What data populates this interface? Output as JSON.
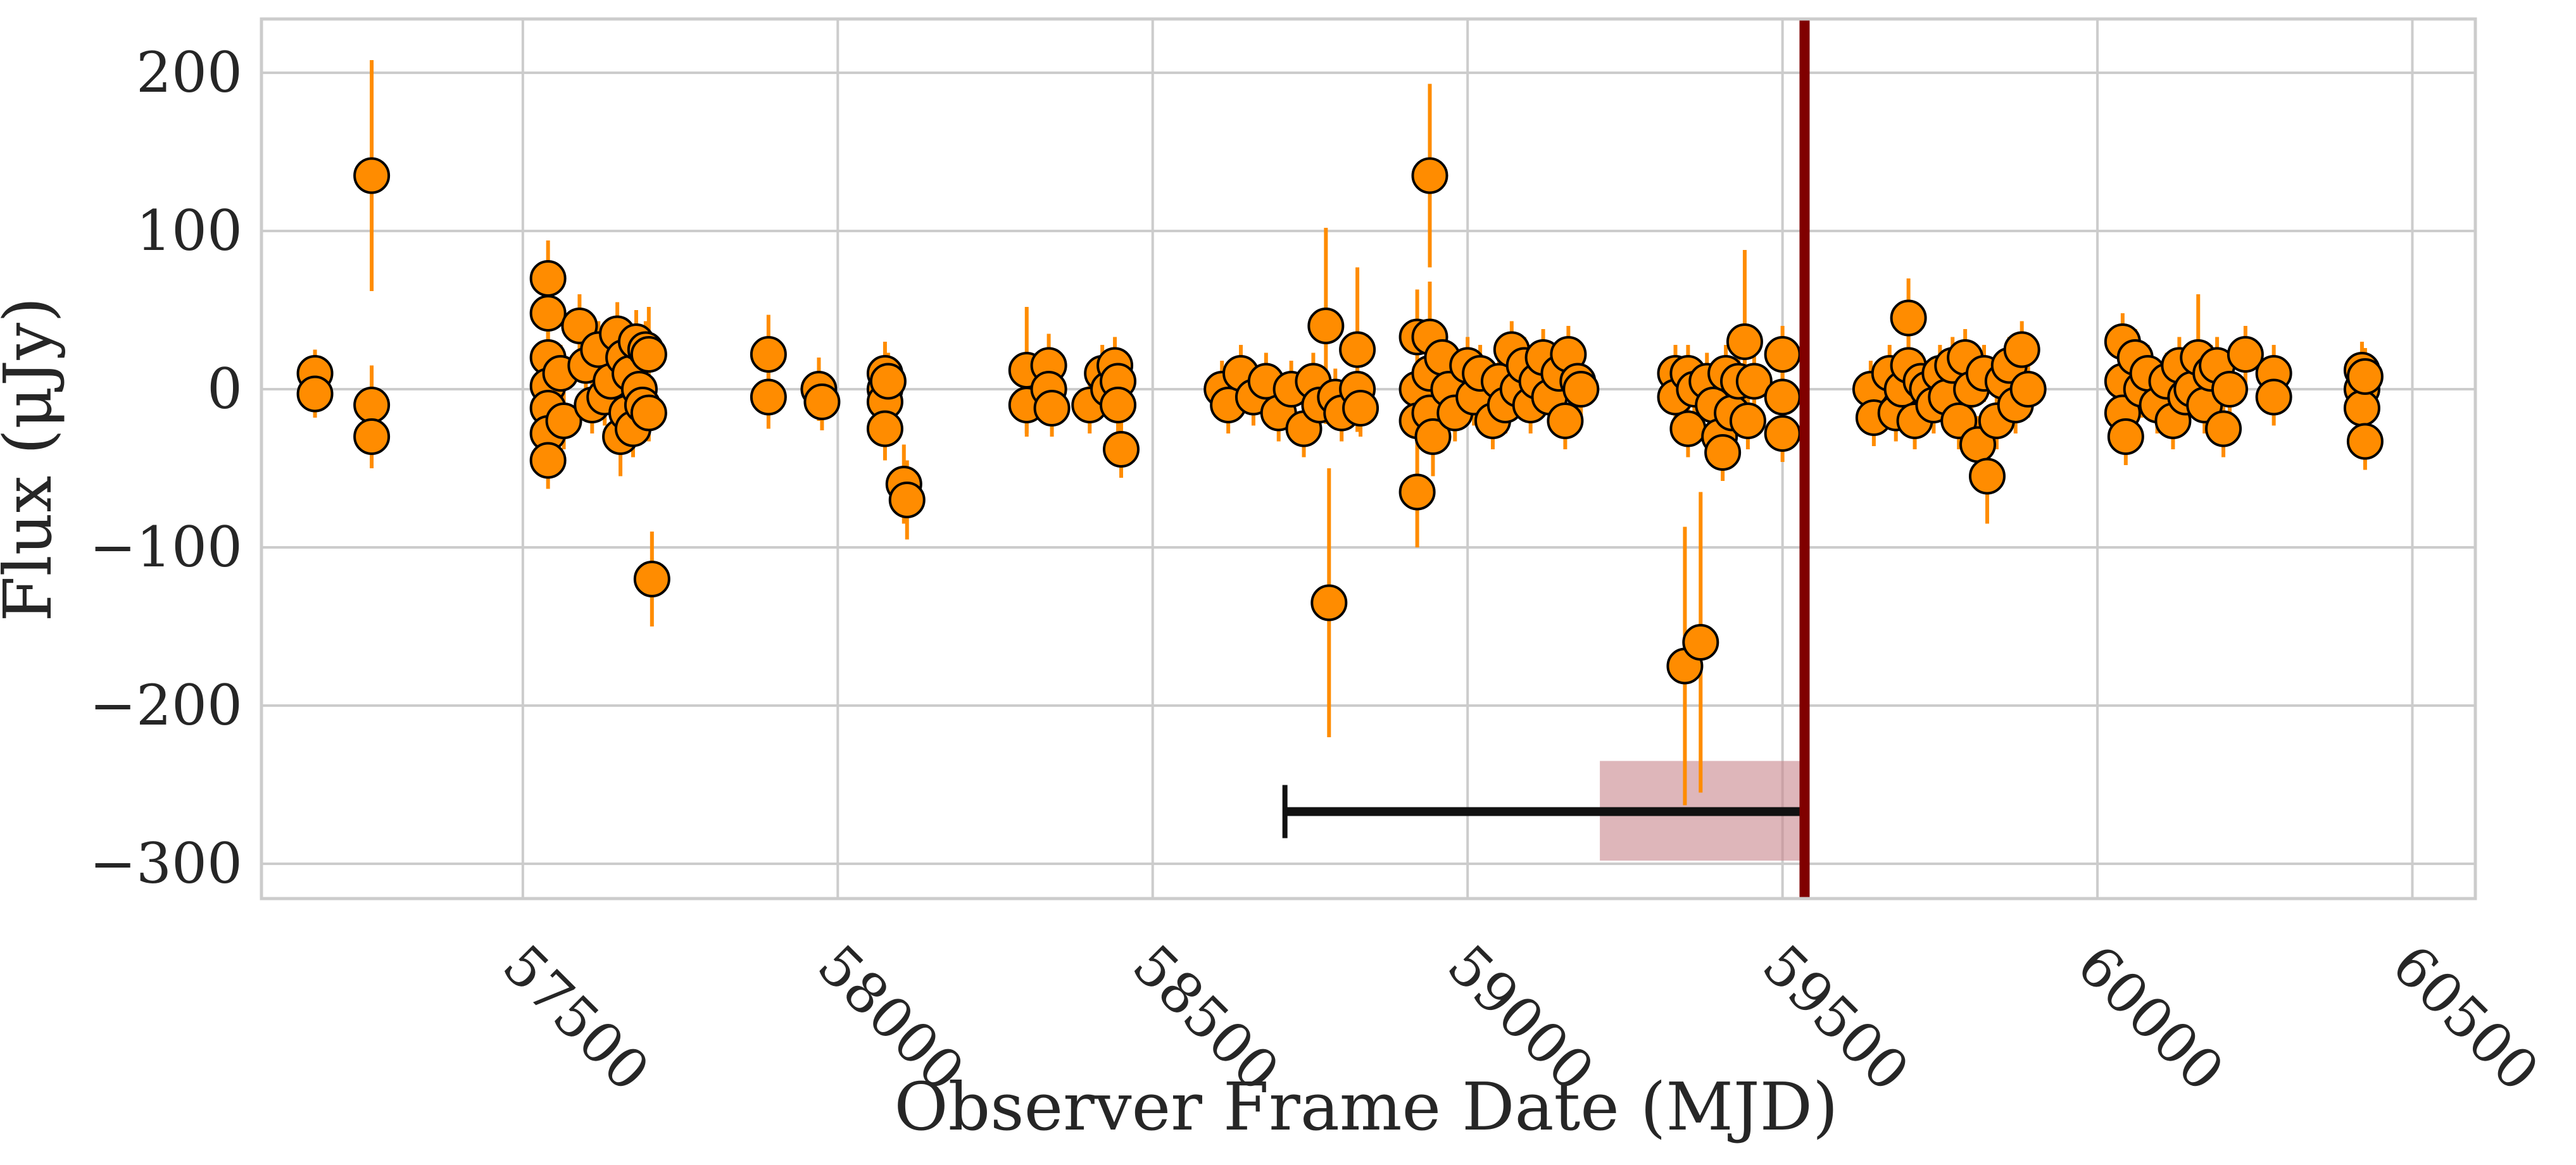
{
  "chart_data": {
    "type": "scatter",
    "title": "",
    "xlabel": "Observer Frame Date (MJD)",
    "ylabel": "Flux (μJy)",
    "xlim": [
      57085,
      60600
    ],
    "ylim": [
      -322,
      234
    ],
    "x_ticks": [
      57500,
      58000,
      58500,
      59000,
      59500,
      60000,
      60500
    ],
    "y_ticks": [
      200,
      100,
      0,
      -100,
      -200,
      -300
    ],
    "x_tick_labels": [
      "57500",
      "58000",
      "58500",
      "59000",
      "59500",
      "60000",
      "60500"
    ],
    "y_tick_labels": [
      "200",
      "100",
      "0",
      "−100",
      "−200",
      "−300"
    ],
    "grid": true,
    "colors": {
      "marker_fill": "#ff8c00",
      "marker_edge": "#000000",
      "errorbar": "#ff8c00",
      "vline": "#800000",
      "span_fill": "#c8868c",
      "interval_bar": "#111111",
      "grid": "#cccccc",
      "axes_edge": "#cccccc"
    },
    "vertical_line": {
      "x": 59535
    },
    "shaded_span": {
      "x_range": [
        59210,
        59535
      ],
      "y_range": [
        -298,
        -235
      ]
    },
    "interval_bar": {
      "x_range": [
        58710,
        59535
      ],
      "y": -267
    },
    "series": [
      {
        "marker": "circle",
        "points": [
          {
            "x": 57170,
            "y": 10,
            "err": 15
          },
          {
            "x": 57170,
            "y": -3,
            "err": 15
          },
          {
            "x": 57260,
            "y": 135,
            "err": 73
          },
          {
            "x": 57260,
            "y": -10,
            "err": 25
          },
          {
            "x": 57260,
            "y": -30,
            "err": 20
          },
          {
            "x": 57540,
            "y": 70,
            "err": 24
          },
          {
            "x": 57540,
            "y": 48,
            "err": 22
          },
          {
            "x": 57540,
            "y": 20,
            "err": 20
          },
          {
            "x": 57540,
            "y": 2,
            "err": 18
          },
          {
            "x": 57540,
            "y": -12,
            "err": 18
          },
          {
            "x": 57540,
            "y": -28,
            "err": 18
          },
          {
            "x": 57540,
            "y": -45,
            "err": 18
          },
          {
            "x": 57560,
            "y": 10,
            "err": 18
          },
          {
            "x": 57565,
            "y": -20,
            "err": 18
          },
          {
            "x": 57590,
            "y": 40,
            "err": 20
          },
          {
            "x": 57600,
            "y": 15,
            "err": 18
          },
          {
            "x": 57610,
            "y": -10,
            "err": 18
          },
          {
            "x": 57620,
            "y": 25,
            "err": 18
          },
          {
            "x": 57630,
            "y": -5,
            "err": 18
          },
          {
            "x": 57640,
            "y": 5,
            "err": 18
          },
          {
            "x": 57650,
            "y": 35,
            "err": 20
          },
          {
            "x": 57655,
            "y": -30,
            "err": 25
          },
          {
            "x": 57660,
            "y": 20,
            "err": 18
          },
          {
            "x": 57665,
            "y": -15,
            "err": 18
          },
          {
            "x": 57670,
            "y": 10,
            "err": 18
          },
          {
            "x": 57675,
            "y": -25,
            "err": 18
          },
          {
            "x": 57680,
            "y": 30,
            "err": 20
          },
          {
            "x": 57685,
            "y": 0,
            "err": 18
          },
          {
            "x": 57690,
            "y": -10,
            "err": 18
          },
          {
            "x": 57695,
            "y": 25,
            "err": 18
          },
          {
            "x": 57700,
            "y": 22,
            "err": 30
          },
          {
            "x": 57700,
            "y": -15,
            "err": 18
          },
          {
            "x": 57705,
            "y": -120,
            "err": 30
          },
          {
            "x": 57890,
            "y": 22,
            "err": 25
          },
          {
            "x": 57890,
            "y": -5,
            "err": 20
          },
          {
            "x": 57970,
            "y": 0,
            "err": 20
          },
          {
            "x": 57975,
            "y": -8,
            "err": 18
          },
          {
            "x": 58075,
            "y": 10,
            "err": 20
          },
          {
            "x": 58075,
            "y": 0,
            "err": 18
          },
          {
            "x": 58075,
            "y": -8,
            "err": 18
          },
          {
            "x": 58075,
            "y": -25,
            "err": 20
          },
          {
            "x": 58080,
            "y": 5,
            "err": 18
          },
          {
            "x": 58105,
            "y": -60,
            "err": 25
          },
          {
            "x": 58110,
            "y": -70,
            "err": 25
          },
          {
            "x": 58300,
            "y": 12,
            "err": 40
          },
          {
            "x": 58300,
            "y": -10,
            "err": 20
          },
          {
            "x": 58335,
            "y": 15,
            "err": 20
          },
          {
            "x": 58335,
            "y": 0,
            "err": 18
          },
          {
            "x": 58340,
            "y": -12,
            "err": 18
          },
          {
            "x": 58400,
            "y": -10,
            "err": 18
          },
          {
            "x": 58420,
            "y": 10,
            "err": 18
          },
          {
            "x": 58430,
            "y": 0,
            "err": 18
          },
          {
            "x": 58440,
            "y": 15,
            "err": 18
          },
          {
            "x": 58445,
            "y": 5,
            "err": 18
          },
          {
            "x": 58445,
            "y": -10,
            "err": 18
          },
          {
            "x": 58450,
            "y": -38,
            "err": 18
          },
          {
            "x": 58610,
            "y": 0,
            "err": 18
          },
          {
            "x": 58620,
            "y": -10,
            "err": 18
          },
          {
            "x": 58640,
            "y": 10,
            "err": 18
          },
          {
            "x": 58660,
            "y": -5,
            "err": 18
          },
          {
            "x": 58680,
            "y": 5,
            "err": 18
          },
          {
            "x": 58700,
            "y": -15,
            "err": 18
          },
          {
            "x": 58720,
            "y": 0,
            "err": 18
          },
          {
            "x": 58740,
            "y": -25,
            "err": 18
          },
          {
            "x": 58755,
            "y": 5,
            "err": 18
          },
          {
            "x": 58765,
            "y": -10,
            "err": 18
          },
          {
            "x": 58775,
            "y": 40,
            "err": 62
          },
          {
            "x": 58780,
            "y": -135,
            "err": 85
          },
          {
            "x": 58790,
            "y": -5,
            "err": 18
          },
          {
            "x": 58800,
            "y": -15,
            "err": 18
          },
          {
            "x": 58825,
            "y": 25,
            "err": 52
          },
          {
            "x": 58825,
            "y": 0,
            "err": 18
          },
          {
            "x": 58830,
            "y": -12,
            "err": 18
          },
          {
            "x": 58920,
            "y": 33,
            "err": 30
          },
          {
            "x": 58920,
            "y": 0,
            "err": 18
          },
          {
            "x": 58920,
            "y": -20,
            "err": 18
          },
          {
            "x": 58920,
            "y": -65,
            "err": 35
          },
          {
            "x": 58940,
            "y": 135,
            "err": 58
          },
          {
            "x": 58940,
            "y": 33,
            "err": 35
          },
          {
            "x": 58940,
            "y": 10,
            "err": 18
          },
          {
            "x": 58940,
            "y": -15,
            "err": 18
          },
          {
            "x": 58945,
            "y": -30,
            "err": 25
          },
          {
            "x": 58960,
            "y": 20,
            "err": 18
          },
          {
            "x": 58970,
            "y": 0,
            "err": 18
          },
          {
            "x": 58980,
            "y": -15,
            "err": 18
          },
          {
            "x": 59000,
            "y": 15,
            "err": 18
          },
          {
            "x": 59010,
            "y": -5,
            "err": 18
          },
          {
            "x": 59020,
            "y": 10,
            "err": 18
          },
          {
            "x": 59040,
            "y": -20,
            "err": 18
          },
          {
            "x": 59050,
            "y": 5,
            "err": 18
          },
          {
            "x": 59060,
            "y": -10,
            "err": 18
          },
          {
            "x": 59070,
            "y": 25,
            "err": 18
          },
          {
            "x": 59080,
            "y": 0,
            "err": 18
          },
          {
            "x": 59090,
            "y": 15,
            "err": 18
          },
          {
            "x": 59100,
            "y": -10,
            "err": 18
          },
          {
            "x": 59110,
            "y": 5,
            "err": 18
          },
          {
            "x": 59120,
            "y": 20,
            "err": 18
          },
          {
            "x": 59130,
            "y": -5,
            "err": 18
          },
          {
            "x": 59145,
            "y": 10,
            "err": 18
          },
          {
            "x": 59155,
            "y": -20,
            "err": 18
          },
          {
            "x": 59160,
            "y": 22,
            "err": 18
          },
          {
            "x": 59175,
            "y": 5,
            "err": 18
          },
          {
            "x": 59180,
            "y": 0,
            "err": 18
          },
          {
            "x": 59330,
            "y": 10,
            "err": 18
          },
          {
            "x": 59330,
            "y": -5,
            "err": 18
          },
          {
            "x": 59345,
            "y": -175,
            "err": 88
          },
          {
            "x": 59350,
            "y": 10,
            "err": 18
          },
          {
            "x": 59350,
            "y": -25,
            "err": 18
          },
          {
            "x": 59360,
            "y": 0,
            "err": 18
          },
          {
            "x": 59370,
            "y": -160,
            "err": 95
          },
          {
            "x": 59380,
            "y": 5,
            "err": 18
          },
          {
            "x": 59390,
            "y": -10,
            "err": 18
          },
          {
            "x": 59400,
            "y": -30,
            "err": 18
          },
          {
            "x": 59405,
            "y": -40,
            "err": 18
          },
          {
            "x": 59410,
            "y": 10,
            "err": 18
          },
          {
            "x": 59420,
            "y": -15,
            "err": 18
          },
          {
            "x": 59430,
            "y": 5,
            "err": 18
          },
          {
            "x": 59440,
            "y": 30,
            "err": 58
          },
          {
            "x": 59445,
            "y": -20,
            "err": 18
          },
          {
            "x": 59455,
            "y": 5,
            "err": 18
          },
          {
            "x": 59500,
            "y": 22,
            "err": 18
          },
          {
            "x": 59500,
            "y": -5,
            "err": 18
          },
          {
            "x": 59500,
            "y": -28,
            "err": 18
          },
          {
            "x": 59640,
            "y": 0,
            "err": 18
          },
          {
            "x": 59645,
            "y": -18,
            "err": 18
          },
          {
            "x": 59670,
            "y": 10,
            "err": 18
          },
          {
            "x": 59680,
            "y": -15,
            "err": 18
          },
          {
            "x": 59690,
            "y": 0,
            "err": 18
          },
          {
            "x": 59700,
            "y": 45,
            "err": 25
          },
          {
            "x": 59700,
            "y": 15,
            "err": 18
          },
          {
            "x": 59710,
            "y": -20,
            "err": 18
          },
          {
            "x": 59720,
            "y": 5,
            "err": 18
          },
          {
            "x": 59730,
            "y": 0,
            "err": 18
          },
          {
            "x": 59740,
            "y": -10,
            "err": 18
          },
          {
            "x": 59750,
            "y": 10,
            "err": 18
          },
          {
            "x": 59760,
            "y": -5,
            "err": 18
          },
          {
            "x": 59770,
            "y": 15,
            "err": 18
          },
          {
            "x": 59780,
            "y": -20,
            "err": 18
          },
          {
            "x": 59790,
            "y": 20,
            "err": 18
          },
          {
            "x": 59800,
            "y": 0,
            "err": 18
          },
          {
            "x": 59810,
            "y": -35,
            "err": 18
          },
          {
            "x": 59820,
            "y": 10,
            "err": 18
          },
          {
            "x": 59825,
            "y": -55,
            "err": 30
          },
          {
            "x": 59840,
            "y": -20,
            "err": 18
          },
          {
            "x": 59850,
            "y": 5,
            "err": 18
          },
          {
            "x": 59860,
            "y": 15,
            "err": 18
          },
          {
            "x": 59870,
            "y": -10,
            "err": 18
          },
          {
            "x": 59880,
            "y": 25,
            "err": 18
          },
          {
            "x": 59890,
            "y": 0,
            "err": 18
          },
          {
            "x": 60040,
            "y": 30,
            "err": 18
          },
          {
            "x": 60040,
            "y": 5,
            "err": 18
          },
          {
            "x": 60040,
            "y": -15,
            "err": 18
          },
          {
            "x": 60045,
            "y": -30,
            "err": 18
          },
          {
            "x": 60060,
            "y": 20,
            "err": 18
          },
          {
            "x": 60070,
            "y": 0,
            "err": 18
          },
          {
            "x": 60080,
            "y": 10,
            "err": 18
          },
          {
            "x": 60095,
            "y": -10,
            "err": 18
          },
          {
            "x": 60110,
            "y": 5,
            "err": 18
          },
          {
            "x": 60120,
            "y": -20,
            "err": 18
          },
          {
            "x": 60130,
            "y": 15,
            "err": 18
          },
          {
            "x": 60140,
            "y": -5,
            "err": 18
          },
          {
            "x": 60150,
            "y": 0,
            "err": 18
          },
          {
            "x": 60160,
            "y": 20,
            "err": 40
          },
          {
            "x": 60170,
            "y": -10,
            "err": 18
          },
          {
            "x": 60180,
            "y": 10,
            "err": 18
          },
          {
            "x": 60190,
            "y": 15,
            "err": 18
          },
          {
            "x": 60200,
            "y": -25,
            "err": 18
          },
          {
            "x": 60210,
            "y": 0,
            "err": 18
          },
          {
            "x": 60235,
            "y": 22,
            "err": 18
          },
          {
            "x": 60280,
            "y": 10,
            "err": 18
          },
          {
            "x": 60280,
            "y": -5,
            "err": 18
          },
          {
            "x": 60420,
            "y": 12,
            "err": 18
          },
          {
            "x": 60420,
            "y": 0,
            "err": 18
          },
          {
            "x": 60420,
            "y": -12,
            "err": 18
          },
          {
            "x": 60425,
            "y": 8,
            "err": 18
          },
          {
            "x": 60425,
            "y": -33,
            "err": 18
          }
        ]
      }
    ]
  }
}
